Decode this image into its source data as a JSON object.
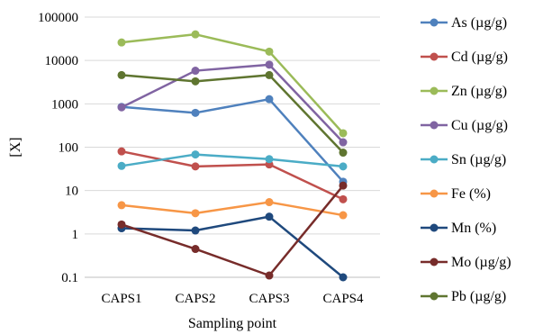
{
  "chart_data": {
    "type": "line",
    "title": "",
    "xlabel": "Sampling point",
    "ylabel": "[X]",
    "y_scale": "log",
    "ylim": [
      0.1,
      100000
    ],
    "y_ticks": [
      "0.1",
      "1",
      "10",
      "100",
      "1000",
      "10000",
      "100000"
    ],
    "grid": "horizontal",
    "legend_position": "right",
    "categories": [
      "CAPS1",
      "CAPS2",
      "CAPS3",
      "CAPS4"
    ],
    "series": [
      {
        "name": "As (µg/g)",
        "color": "#4F81BD",
        "values": [
          850,
          620,
          1280,
          16
        ]
      },
      {
        "name": "Cd (µg/g)",
        "color": "#C0504D",
        "values": [
          80,
          36,
          40,
          6.3
        ]
      },
      {
        "name": "Zn (µg/g)",
        "color": "#9BBB59",
        "values": [
          26000,
          40000,
          16000,
          210
        ]
      },
      {
        "name": "Cu (µg/g)",
        "color": "#8064A2",
        "values": [
          830,
          5800,
          8000,
          130
        ]
      },
      {
        "name": "Sn (µg/g)",
        "color": "#4BACC6",
        "values": [
          37,
          68,
          53,
          36
        ]
      },
      {
        "name": "Fe (%)",
        "color": "#F79646",
        "values": [
          4.6,
          3.0,
          5.4,
          2.7
        ]
      },
      {
        "name": "Mn (%)",
        "color": "#1F497D",
        "values": [
          1.35,
          1.2,
          2.5,
          0.1
        ]
      },
      {
        "name": "Mo (µg/g)",
        "color": "#772C2A",
        "values": [
          1.65,
          0.45,
          0.11,
          13
        ]
      },
      {
        "name": "Pb (µg/g)",
        "color": "#5F7530",
        "values": [
          4600,
          3300,
          4600,
          75
        ]
      }
    ]
  }
}
